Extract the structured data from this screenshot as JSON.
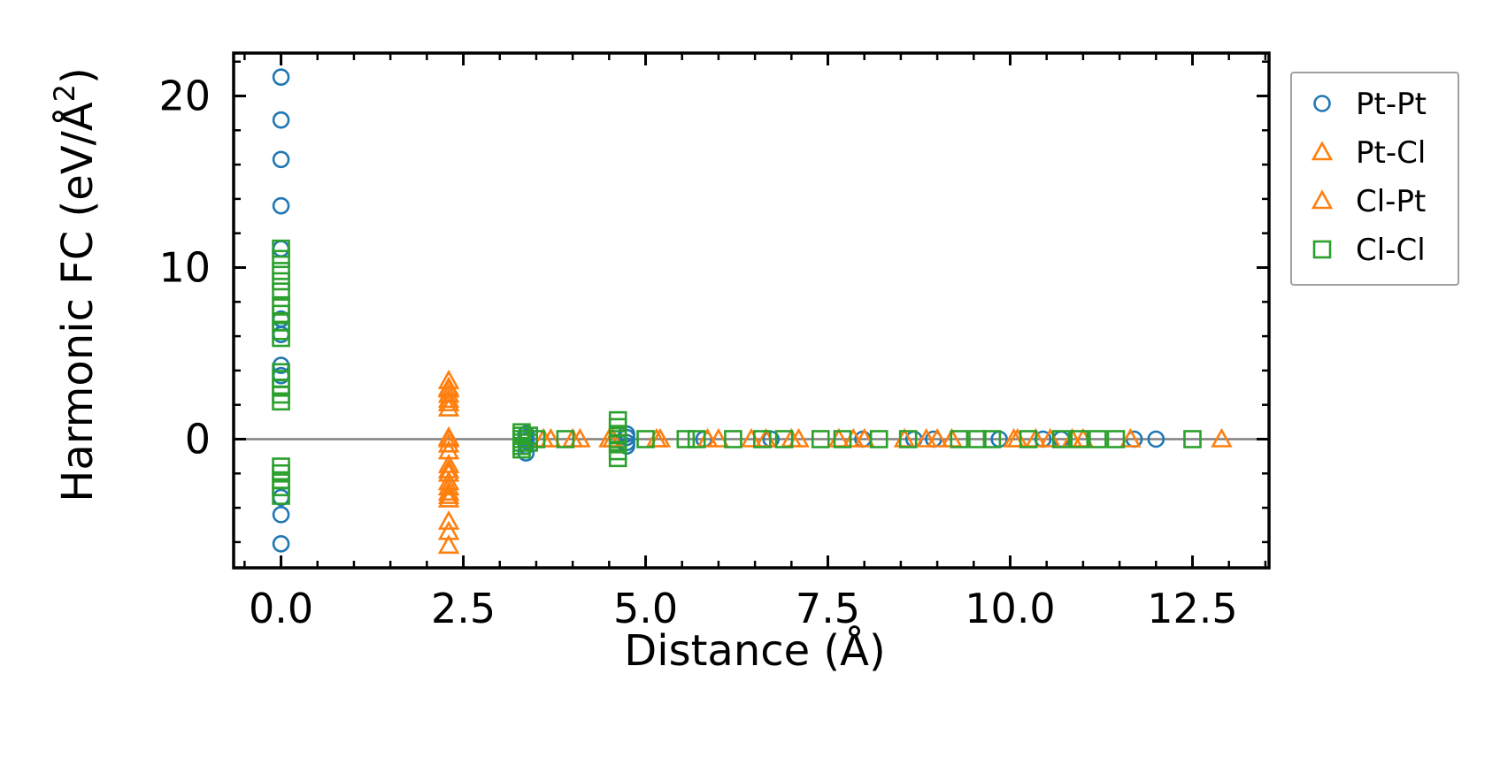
{
  "chart_data": {
    "type": "scatter",
    "title": "",
    "xlabel": "Distance (Å)",
    "ylabel": "Harmonic FC (eV/Å²)",
    "ylabel_main": "Harmonic FC (eV/Å",
    "ylabel_sup": "2",
    "ylabel_close": ")",
    "xlim": [
      -0.65,
      13.55
    ],
    "ylim": [
      -7.5,
      22.5
    ],
    "xticks": [
      0.0,
      2.5,
      5.0,
      7.5,
      10.0,
      12.5
    ],
    "xtick_labels": [
      "0.0",
      "2.5",
      "5.0",
      "7.5",
      "10.0",
      "12.5"
    ],
    "yticks": [
      0,
      10,
      20
    ],
    "ytick_labels": [
      "0",
      "10",
      "20"
    ],
    "zero_line": true,
    "grid": false,
    "legend_position": "outside-right-top",
    "series": [
      {
        "name": "Pt-Pt",
        "marker": "circle",
        "color": "#1f77b4",
        "points": [
          [
            0,
            21.1
          ],
          [
            0,
            18.6
          ],
          [
            0,
            16.3
          ],
          [
            0,
            13.6
          ],
          [
            0,
            11.1
          ],
          [
            0,
            7.0
          ],
          [
            0,
            6.1
          ],
          [
            0,
            4.3
          ],
          [
            0,
            3.7
          ],
          [
            0,
            -3.4
          ],
          [
            0,
            -4.4
          ],
          [
            0,
            -6.1
          ],
          [
            3.36,
            0.3
          ],
          [
            3.36,
            0.1
          ],
          [
            3.36,
            -0.1
          ],
          [
            3.36,
            -0.4
          ],
          [
            3.36,
            -0.8
          ],
          [
            4.74,
            0.3
          ],
          [
            4.74,
            0.1
          ],
          [
            4.74,
            -0.2
          ],
          [
            4.74,
            -0.4
          ],
          [
            5.8,
            0
          ],
          [
            6.72,
            0
          ],
          [
            7.98,
            0
          ],
          [
            8.68,
            0
          ],
          [
            8.95,
            0
          ],
          [
            9.85,
            0
          ],
          [
            10.45,
            0
          ],
          [
            10.7,
            0
          ],
          [
            11.7,
            0
          ],
          [
            12.0,
            0
          ]
        ]
      },
      {
        "name": "Pt-Cl",
        "marker": "triangle",
        "color": "#ff7f0e",
        "points": [
          [
            2.3,
            3.4
          ],
          [
            2.3,
            3.0
          ],
          [
            2.3,
            2.6
          ],
          [
            2.3,
            2.1
          ],
          [
            2.3,
            1.8
          ],
          [
            2.3,
            0.1
          ],
          [
            2.3,
            -0.3
          ],
          [
            2.3,
            -0.7
          ],
          [
            2.3,
            -1.5
          ],
          [
            2.3,
            -2.0
          ],
          [
            2.3,
            -2.5
          ],
          [
            2.3,
            -3.1
          ],
          [
            2.3,
            -3.5
          ],
          [
            2.3,
            -4.8
          ],
          [
            2.3,
            -5.4
          ],
          [
            2.3,
            -6.2
          ],
          [
            3.7,
            0
          ],
          [
            4.0,
            0
          ],
          [
            4.55,
            0
          ],
          [
            5.15,
            0
          ],
          [
            5.85,
            0
          ],
          [
            6.45,
            0
          ],
          [
            7.1,
            0
          ],
          [
            7.85,
            0
          ],
          [
            8.55,
            0
          ],
          [
            9.2,
            0
          ],
          [
            10.05,
            0
          ],
          [
            10.55,
            0
          ],
          [
            11.0,
            0
          ],
          [
            11.65,
            0
          ]
        ]
      },
      {
        "name": "Cl-Pt",
        "marker": "triangle",
        "color": "#ff7f0e",
        "points": [
          [
            2.3,
            2.9
          ],
          [
            2.3,
            2.3
          ],
          [
            2.3,
            0.0
          ],
          [
            2.3,
            -1.8
          ],
          [
            2.3,
            -2.8
          ],
          [
            2.3,
            -3.3
          ],
          [
            3.6,
            0
          ],
          [
            4.1,
            0
          ],
          [
            4.5,
            0
          ],
          [
            5.2,
            0
          ],
          [
            6.0,
            0
          ],
          [
            6.65,
            0
          ],
          [
            7.0,
            0
          ],
          [
            7.65,
            0
          ],
          [
            8.0,
            0
          ],
          [
            8.85,
            0
          ],
          [
            9.0,
            0
          ],
          [
            10.1,
            0
          ],
          [
            10.35,
            0
          ],
          [
            10.85,
            0
          ],
          [
            12.9,
            0
          ]
        ]
      },
      {
        "name": "Cl-Cl",
        "marker": "square",
        "color": "#2ca02c",
        "points": [
          [
            0,
            11.1
          ],
          [
            0,
            10.5
          ],
          [
            0,
            9.8
          ],
          [
            0,
            9.2
          ],
          [
            0,
            8.6
          ],
          [
            0,
            7.8
          ],
          [
            0,
            7.3
          ],
          [
            0,
            6.8
          ],
          [
            0,
            6.3
          ],
          [
            0,
            5.9
          ],
          [
            0,
            3.9
          ],
          [
            0,
            3.5
          ],
          [
            0,
            3.0
          ],
          [
            0,
            2.6
          ],
          [
            0,
            2.2
          ],
          [
            0,
            -1.6
          ],
          [
            0,
            -2.0
          ],
          [
            0,
            -2.4
          ],
          [
            0,
            -2.8
          ],
          [
            0,
            -3.3
          ],
          [
            3.3,
            0.4
          ],
          [
            3.3,
            0.2
          ],
          [
            3.3,
            0.0
          ],
          [
            3.3,
            -0.2
          ],
          [
            3.3,
            -0.4
          ],
          [
            3.3,
            -0.6
          ],
          [
            3.4,
            0.2
          ],
          [
            3.4,
            -0.2
          ],
          [
            3.5,
            0.0
          ],
          [
            4.62,
            1.1
          ],
          [
            4.62,
            0.7
          ],
          [
            4.62,
            0.3
          ],
          [
            4.62,
            0.0
          ],
          [
            4.62,
            -0.3
          ],
          [
            4.62,
            -0.7
          ],
          [
            4.62,
            -1.1
          ],
          [
            3.9,
            0
          ],
          [
            5.0,
            0
          ],
          [
            5.55,
            0
          ],
          [
            5.7,
            0
          ],
          [
            6.2,
            0
          ],
          [
            6.6,
            0
          ],
          [
            6.9,
            0
          ],
          [
            7.4,
            0
          ],
          [
            7.7,
            0
          ],
          [
            8.2,
            0
          ],
          [
            8.6,
            0
          ],
          [
            9.3,
            0
          ],
          [
            9.55,
            0
          ],
          [
            9.75,
            0
          ],
          [
            10.25,
            0
          ],
          [
            10.7,
            0
          ],
          [
            10.95,
            0
          ],
          [
            11.2,
            0
          ],
          [
            11.45,
            0
          ],
          [
            12.5,
            0
          ]
        ]
      }
    ]
  }
}
